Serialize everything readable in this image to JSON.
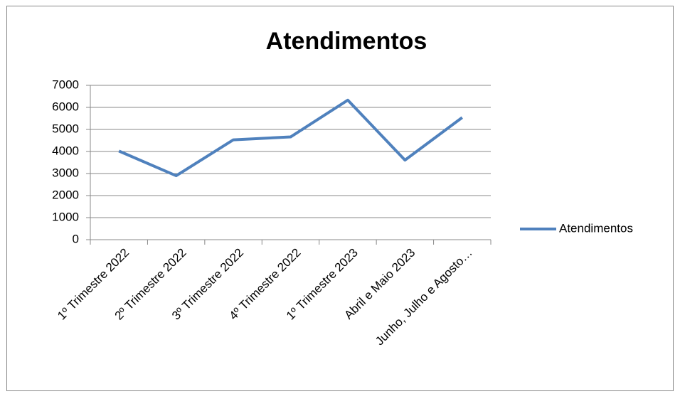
{
  "chart_data": {
    "type": "line",
    "title": "Atendimentos",
    "categories": [
      "1º Trimestre 2022",
      "2º Trimestre 2022",
      "3º Trimestre 2022",
      "4º Trimestre 2022",
      "1º Trimestre 2023",
      "Abril e Maio 2023",
      "Junho, Julho e Agosto…"
    ],
    "series": [
      {
        "name": "Atendimentos",
        "color": "#4f81bd",
        "values": [
          4020,
          2900,
          4530,
          4660,
          6330,
          3610,
          5540
        ]
      }
    ],
    "ylim": [
      0,
      7000
    ],
    "yticks": [
      0,
      1000,
      2000,
      3000,
      4000,
      5000,
      6000,
      7000
    ],
    "grid": true,
    "legend": "right"
  }
}
